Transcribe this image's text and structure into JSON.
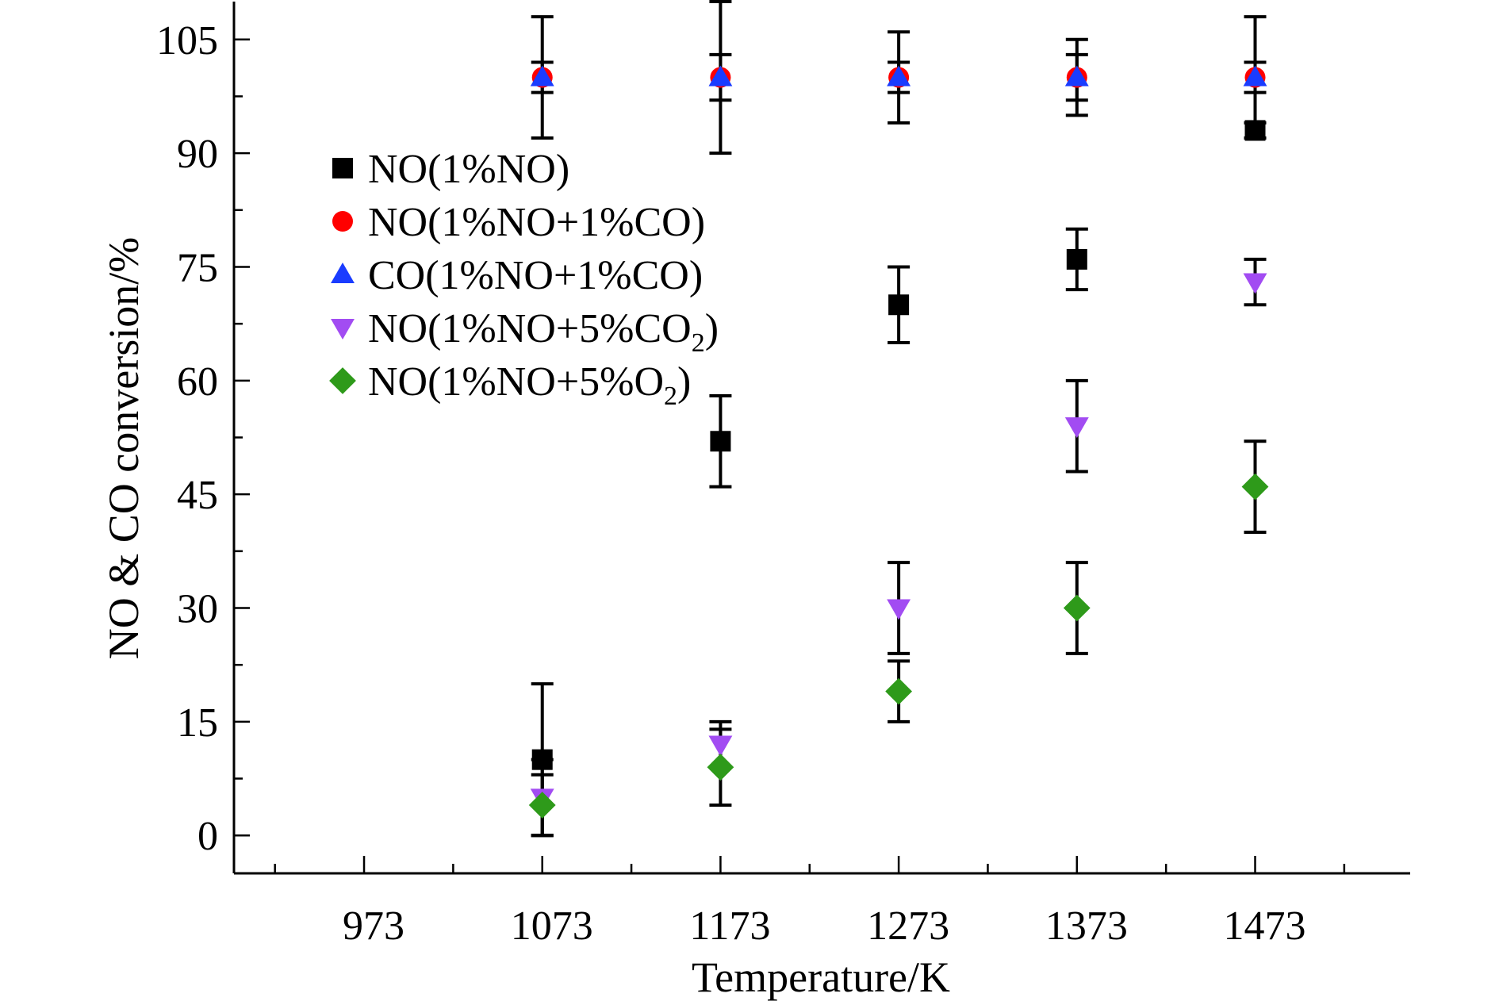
{
  "chart_data": {
    "type": "scatter",
    "xlabel": "Temperature/K",
    "ylabel": "NO & CO conversion/%",
    "xlim": [
      900,
      1560
    ],
    "ylim": [
      -5,
      110
    ],
    "xticks": [
      973,
      1073,
      1173,
      1273,
      1373,
      1473
    ],
    "yticks": [
      0,
      15,
      30,
      45,
      60,
      75,
      90,
      105
    ],
    "legend_position": "top-left",
    "series": [
      {
        "name": "NO(1%NO)",
        "label_main": "NO(1%NO)",
        "label_sub": "",
        "label_tail": "",
        "marker": "square",
        "color": "#000000",
        "x": [
          1073,
          1173,
          1273,
          1373,
          1473
        ],
        "y": [
          10,
          52,
          70,
          76,
          93
        ],
        "err": [
          10,
          6,
          5,
          4,
          1
        ]
      },
      {
        "name": "NO(1%NO+1%CO)",
        "label_main": "NO(1%NO+1%CO)",
        "label_sub": "",
        "label_tail": "",
        "marker": "circle",
        "color": "#ff0000",
        "x": [
          1073,
          1173,
          1273,
          1373,
          1473
        ],
        "y": [
          100,
          100,
          100,
          100,
          100
        ],
        "err": [
          8,
          10,
          6,
          5,
          8
        ]
      },
      {
        "name": "CO(1%NO+1%CO)",
        "label_main": "CO(1%NO+1%CO)",
        "label_sub": "",
        "label_tail": "",
        "marker": "triangle-up",
        "color": "#1a3cff",
        "x": [
          1073,
          1173,
          1273,
          1373,
          1473
        ],
        "y": [
          100,
          100,
          100,
          100,
          100
        ],
        "err": [
          2,
          3,
          2,
          3,
          2
        ]
      },
      {
        "name": "NO(1%NO+5%CO2)",
        "label_main": "NO(1%NO+5%CO",
        "label_sub": "2",
        "label_tail": ")",
        "marker": "triangle-down",
        "color": "#a24cf2",
        "x": [
          1073,
          1173,
          1273,
          1373,
          1473
        ],
        "y": [
          5,
          12,
          30,
          54,
          73
        ],
        "err": [
          5,
          3,
          6,
          6,
          3
        ]
      },
      {
        "name": "NO(1%NO+5%O2)",
        "label_main": "NO(1%NO+5%O",
        "label_sub": "2",
        "label_tail": ")",
        "marker": "diamond",
        "color": "#2e9a1a",
        "x": [
          1073,
          1173,
          1273,
          1373,
          1473
        ],
        "y": [
          4,
          9,
          19,
          30,
          46
        ],
        "err": [
          4,
          5,
          4,
          6,
          6
        ]
      }
    ]
  }
}
